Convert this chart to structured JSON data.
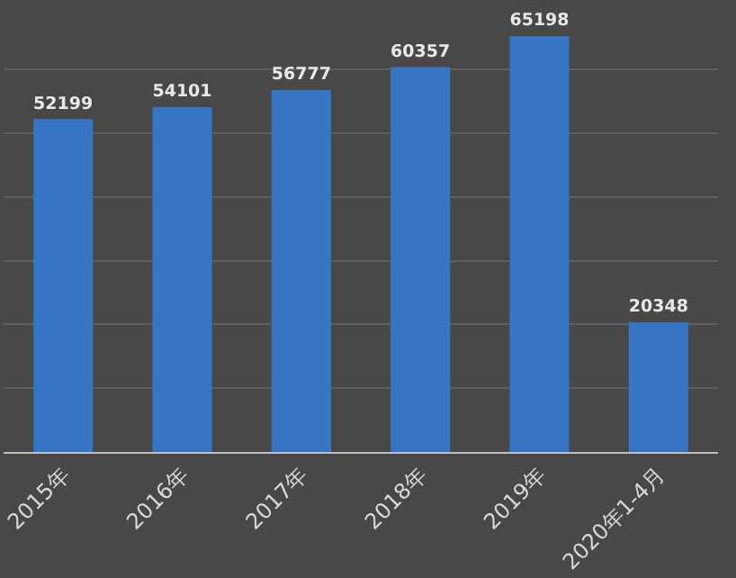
{
  "chart_data": {
    "type": "bar",
    "categories": [
      "2015年",
      "2016年",
      "2017年",
      "2018年",
      "2019年",
      "2020年1-4月"
    ],
    "values": [
      52199,
      54101,
      56777,
      60357,
      65198,
      20348
    ],
    "color": "#3674c4",
    "tick_labels": "x",
    "grid": "y",
    "data_labels": true,
    "legend": false
  }
}
